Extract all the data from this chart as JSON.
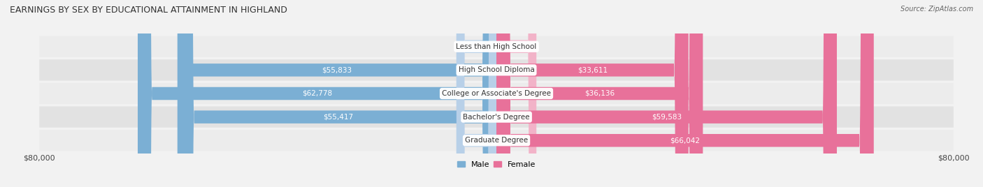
{
  "title": "EARNINGS BY SEX BY EDUCATIONAL ATTAINMENT IN HIGHLAND",
  "source": "Source: ZipAtlas.com",
  "categories": [
    "Less than High School",
    "High School Diploma",
    "College or Associate's Degree",
    "Bachelor's Degree",
    "Graduate Degree"
  ],
  "male_values": [
    0,
    55833,
    62778,
    55417,
    0
  ],
  "female_values": [
    0,
    33611,
    36136,
    59583,
    66042
  ],
  "max_val": 80000,
  "male_color": "#7bafd4",
  "female_color": "#e8719a",
  "male_color_light": "#b8d0e8",
  "female_color_light": "#f2b3c8",
  "title_fontsize": 9,
  "source_fontsize": 7,
  "axis_label_fontsize": 8,
  "bar_label_fontsize": 7.5,
  "cat_label_fontsize": 7.5,
  "legend_fontsize": 8,
  "xlabel_left": "$80,000",
  "xlabel_right": "$80,000",
  "row_colors": [
    "#ececec",
    "#e2e2e2"
  ],
  "fig_bg": "#f2f2f2"
}
